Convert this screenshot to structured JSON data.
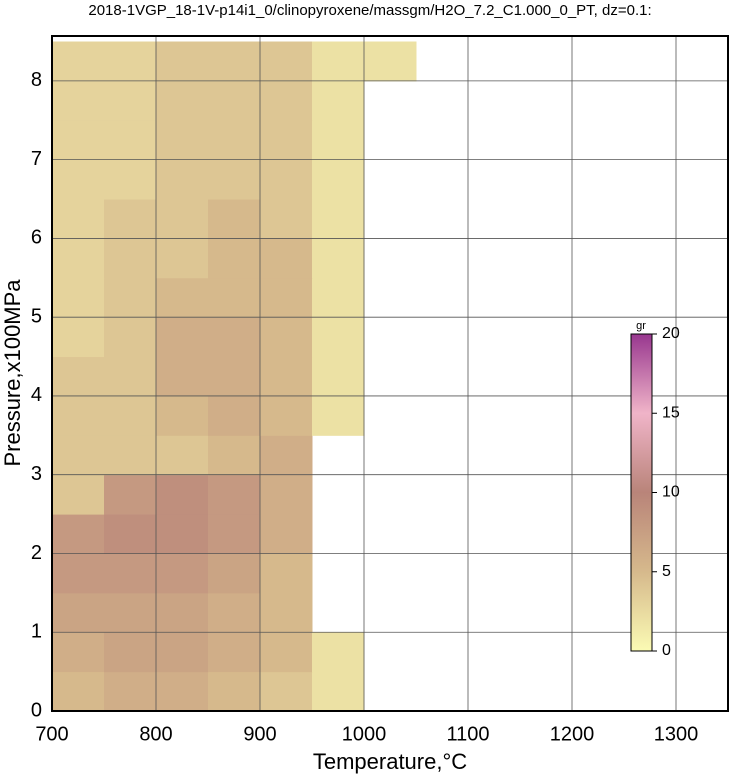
{
  "chart_data": {
    "type": "heatmap",
    "title": "2018-1VGP_18-1V-p14i1_0/clinopyroxene/massgm/H2O_7.2_C1.000_0_PT, dz=0.1:",
    "x_label": "Temperature,°C",
    "y_label": "Pressure,x100MPa",
    "x": [
      725,
      775,
      825,
      875,
      925,
      975,
      1025,
      1075,
      1125,
      1175,
      1225,
      1275,
      1325
    ],
    "y": [
      0.25,
      0.75,
      1.25,
      1.75,
      2.25,
      2.75,
      3.25,
      3.75,
      4.25,
      4.75,
      5.25,
      5.75,
      6.25,
      6.75,
      7.25,
      7.75,
      8.25
    ],
    "z": [
      [
        5,
        6,
        6,
        5,
        4,
        2,
        null,
        null,
        null,
        null,
        null,
        null,
        null
      ],
      [
        6,
        7,
        7,
        6,
        5,
        2,
        null,
        null,
        null,
        null,
        null,
        null,
        null
      ],
      [
        7,
        7,
        7,
        6,
        5,
        null,
        null,
        null,
        null,
        null,
        null,
        null,
        null
      ],
      [
        8,
        8,
        8,
        7,
        5,
        null,
        null,
        null,
        null,
        null,
        null,
        null,
        null
      ],
      [
        8,
        9,
        9,
        8,
        6,
        null,
        null,
        null,
        null,
        null,
        null,
        null,
        null
      ],
      [
        4,
        8,
        9,
        8,
        6,
        null,
        null,
        null,
        null,
        null,
        null,
        null,
        null
      ],
      [
        4,
        4,
        4,
        5,
        6,
        null,
        null,
        null,
        null,
        null,
        null,
        null,
        null
      ],
      [
        4,
        4,
        5,
        6,
        5,
        2,
        null,
        null,
        null,
        null,
        null,
        null,
        null
      ],
      [
        4,
        4,
        6,
        6,
        5,
        2,
        null,
        null,
        null,
        null,
        null,
        null,
        null
      ],
      [
        3,
        4,
        6,
        6,
        5,
        2,
        null,
        null,
        null,
        null,
        null,
        null,
        null
      ],
      [
        3,
        4,
        5,
        5,
        5,
        2,
        null,
        null,
        null,
        null,
        null,
        null,
        null
      ],
      [
        3,
        4,
        4,
        5,
        5,
        2,
        null,
        null,
        null,
        null,
        null,
        null,
        null
      ],
      [
        3,
        4,
        4,
        5,
        4,
        2,
        null,
        null,
        null,
        null,
        null,
        null,
        null
      ],
      [
        3,
        3,
        4,
        4,
        4,
        2,
        null,
        null,
        null,
        null,
        null,
        null,
        null
      ],
      [
        3,
        3,
        4,
        4,
        4,
        2,
        null,
        null,
        null,
        null,
        null,
        null,
        null
      ],
      [
        3,
        3,
        4,
        4,
        4,
        2,
        null,
        null,
        null,
        null,
        null,
        null,
        null
      ],
      [
        3,
        3,
        4,
        4,
        4,
        2,
        2,
        null,
        null,
        null,
        null,
        null,
        null
      ]
    ],
    "xlim": [
      700,
      1350
    ],
    "xticks": [
      700,
      800,
      900,
      1000,
      1100,
      1200,
      1300
    ],
    "ylim": [
      0,
      8.57
    ],
    "yticks": [
      0,
      1,
      2,
      3,
      4,
      5,
      6,
      7,
      8
    ],
    "grid": true,
    "colorbar": {
      "label": "gr",
      "lim": [
        0,
        20
      ],
      "ticks": [
        0,
        5,
        10,
        15,
        20
      ],
      "colormap": [
        "#fbfbb4",
        "#d6b98c",
        "#b98479",
        "#f0b4c8",
        "#98378f"
      ]
    }
  }
}
